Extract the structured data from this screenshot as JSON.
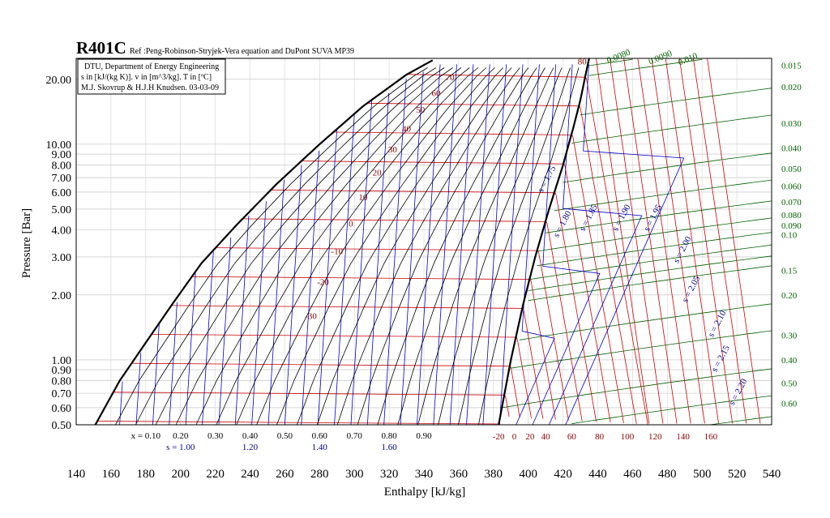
{
  "chart_data": {
    "type": "line",
    "title": "R401C",
    "subtitle": "Ref :Peng-Robinson-Stryjek-Vera equation and DuPont SUVA MP39",
    "info_lines": [
      "DTU, Department of Energy Engineering",
      "s in [kJ/(kg K)]. v in [m^3/kg]. T in [ºC]",
      "M.J. Skovrup & H.J.H Knudsen. 03-03-09"
    ],
    "xlabel": "Enthalpy [kJ/kg]",
    "ylabel": "Pressure [Bar]",
    "xlim": [
      140,
      540
    ],
    "ylim": [
      0.5,
      25
    ],
    "y_scale": "log",
    "x_ticks": [
      "140",
      "160",
      "180",
      "200",
      "220",
      "240",
      "260",
      "280",
      "300",
      "320",
      "340",
      "360",
      "380",
      "400",
      "420",
      "440",
      "460",
      "480",
      "500",
      "520",
      "540"
    ],
    "y_ticks": [
      {
        "label": "0.50",
        "value": 0.5
      },
      {
        "label": "0.60",
        "value": 0.6
      },
      {
        "label": "0.70",
        "value": 0.7
      },
      {
        "label": "0.80",
        "value": 0.8
      },
      {
        "label": "0.90",
        "value": 0.9
      },
      {
        "label": "1.00",
        "value": 1.0
      },
      {
        "label": "2.00",
        "value": 2.0
      },
      {
        "label": "3.00",
        "value": 3.0
      },
      {
        "label": "4.00",
        "value": 4.0
      },
      {
        "label": "5.00",
        "value": 5.0
      },
      {
        "label": "6.00",
        "value": 6.0
      },
      {
        "label": "7.00",
        "value": 7.0
      },
      {
        "label": "8.00",
        "value": 8.0
      },
      {
        "label": "9.00",
        "value": 9.0
      },
      {
        "label": "10.00",
        "value": 10.0
      },
      {
        "label": "20.00",
        "value": 20.0
      }
    ],
    "grid": true,
    "colors": {
      "saturation": "#000000",
      "isotherm": "#cc0000",
      "isentrope": "#0000cc",
      "isochore": "#006400",
      "quality": "#000000"
    },
    "saturated_liquid": [
      [
        151,
        0.5
      ],
      [
        165,
        0.8
      ],
      [
        180,
        1.2
      ],
      [
        195,
        1.8
      ],
      [
        212,
        2.8
      ],
      [
        232,
        4.2
      ],
      [
        255,
        6.5
      ],
      [
        280,
        10
      ],
      [
        305,
        15
      ],
      [
        330,
        21
      ],
      [
        345,
        24.5
      ]
    ],
    "saturated_vapor": [
      [
        383,
        0.5
      ],
      [
        390,
        1.0
      ],
      [
        397,
        1.8
      ],
      [
        404,
        3.0
      ],
      [
        412,
        5.0
      ],
      [
        420,
        8.0
      ],
      [
        426,
        12
      ],
      [
        430,
        16
      ],
      [
        433,
        21
      ],
      [
        435,
        25
      ]
    ],
    "temperature_labels_in_dome": [
      {
        "text": "70",
        "h": 355,
        "p": 20.5
      },
      {
        "text": "60",
        "h": 347,
        "p": 17.3
      },
      {
        "text": "50",
        "h": 338,
        "p": 14.5
      },
      {
        "text": "40",
        "h": 330,
        "p": 11.8
      },
      {
        "text": "30",
        "h": 322,
        "p": 9.5
      },
      {
        "text": "20",
        "h": 313,
        "p": 7.4
      },
      {
        "text": "10",
        "h": 305,
        "p": 5.7
      },
      {
        "text": "0",
        "h": 298,
        "p": 4.3
      },
      {
        "text": "-10",
        "h": 290,
        "p": 3.2
      },
      {
        "text": "-20",
        "h": 282,
        "p": 2.3
      },
      {
        "text": "-30",
        "h": 275,
        "p": 1.6
      },
      {
        "text": "80",
        "h": 431,
        "p": 24.3
      }
    ],
    "temperature_bottom_labels": [
      {
        "text": "-20",
        "h": 383
      },
      {
        "text": "0",
        "h": 392
      },
      {
        "text": "20",
        "h": 401
      },
      {
        "text": "40",
        "h": 410
      },
      {
        "text": "60",
        "h": 425
      },
      {
        "text": "80",
        "h": 441
      },
      {
        "text": "100",
        "h": 457
      },
      {
        "text": "120",
        "h": 473
      },
      {
        "text": "140",
        "h": 489
      },
      {
        "text": "160",
        "h": 505
      }
    ],
    "quality_labels": [
      {
        "text": "x = 0.10",
        "h": 180
      },
      {
        "text": "0.20",
        "h": 200
      },
      {
        "text": "0.30",
        "h": 220
      },
      {
        "text": "0.40",
        "h": 240
      },
      {
        "text": "0.50",
        "h": 260
      },
      {
        "text": "0.60",
        "h": 280
      },
      {
        "text": "0.70",
        "h": 300
      },
      {
        "text": "0.80",
        "h": 320
      },
      {
        "text": "0.90",
        "h": 340
      }
    ],
    "entropy_bottom_labels": [
      {
        "text": "s = 1.00",
        "h": 200
      },
      {
        "text": "1.20",
        "h": 240
      },
      {
        "text": "1.40",
        "h": 280
      },
      {
        "text": "1.60",
        "h": 320
      }
    ],
    "entropy_vapor_labels": [
      {
        "text": "s = 1.75",
        "h": 412,
        "p": 6.8
      },
      {
        "text": "s = 1.80",
        "h": 421,
        "p": 4.2
      },
      {
        "text": "s = 1.85",
        "h": 436,
        "p": 4.5
      },
      {
        "text": "s = 1.90",
        "h": 455,
        "p": 4.5
      },
      {
        "text": "s = 1.95",
        "h": 473,
        "p": 4.5
      },
      {
        "text": "s = 2.00",
        "h": 490,
        "p": 3.2
      },
      {
        "text": "s = 2.05",
        "h": 495,
        "p": 2.1
      },
      {
        "text": "s = 2.10",
        "h": 510,
        "p": 1.45
      },
      {
        "text": "s = 2.15",
        "h": 512,
        "p": 1.0
      },
      {
        "text": "s = 2.20",
        "h": 522,
        "p": 0.7
      }
    ],
    "specific_volume_labels": [
      {
        "text": "0.0080",
        "h": 446,
        "p": 24.5
      },
      {
        "text": "0.0090",
        "h": 470,
        "p": 24.2
      },
      {
        "text": "0.010",
        "h": 487,
        "p": 24.0
      },
      {
        "text": "0.015",
        "h": 540,
        "p": 23.2
      },
      {
        "text": "0.020",
        "h": 540,
        "p": 18.5
      },
      {
        "text": "0.030",
        "h": 540,
        "p": 12.5
      },
      {
        "text": "0.040",
        "h": 540,
        "p": 9.6
      },
      {
        "text": "0.050",
        "h": 540,
        "p": 7.7
      },
      {
        "text": "0.060",
        "h": 540,
        "p": 6.4
      },
      {
        "text": "0.070",
        "h": 540,
        "p": 5.4
      },
      {
        "text": "0.080",
        "h": 540,
        "p": 4.7
      },
      {
        "text": "0.090",
        "h": 540,
        "p": 4.2
      },
      {
        "text": "0.10",
        "h": 540,
        "p": 3.8
      },
      {
        "text": "0.15",
        "h": 540,
        "p": 2.6
      },
      {
        "text": "0.20",
        "h": 540,
        "p": 2.0
      },
      {
        "text": "0.30",
        "h": 540,
        "p": 1.3
      },
      {
        "text": "0.40",
        "h": 540,
        "p": 1.0
      },
      {
        "text": "0.50",
        "h": 540,
        "p": 0.78
      },
      {
        "text": "0.60",
        "h": 540,
        "p": 0.63
      }
    ]
  }
}
